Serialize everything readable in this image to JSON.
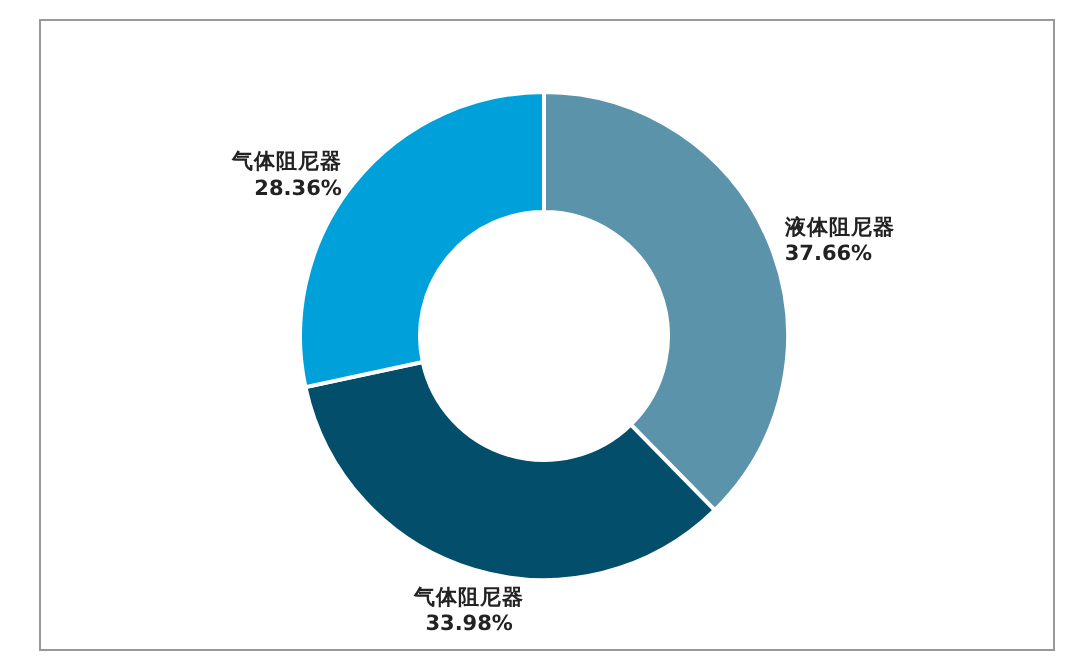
{
  "chart_data": {
    "type": "donut",
    "categories": [
      "液体阻尼器",
      "气体阻尼器",
      "气体阻尼器"
    ],
    "values": [
      37.66,
      33.98,
      28.36
    ],
    "colors": [
      "#5b93ab",
      "#034f6b",
      "#00a1db"
    ],
    "value_labels": [
      "37.66%",
      "33.98%",
      "28.36%"
    ]
  }
}
